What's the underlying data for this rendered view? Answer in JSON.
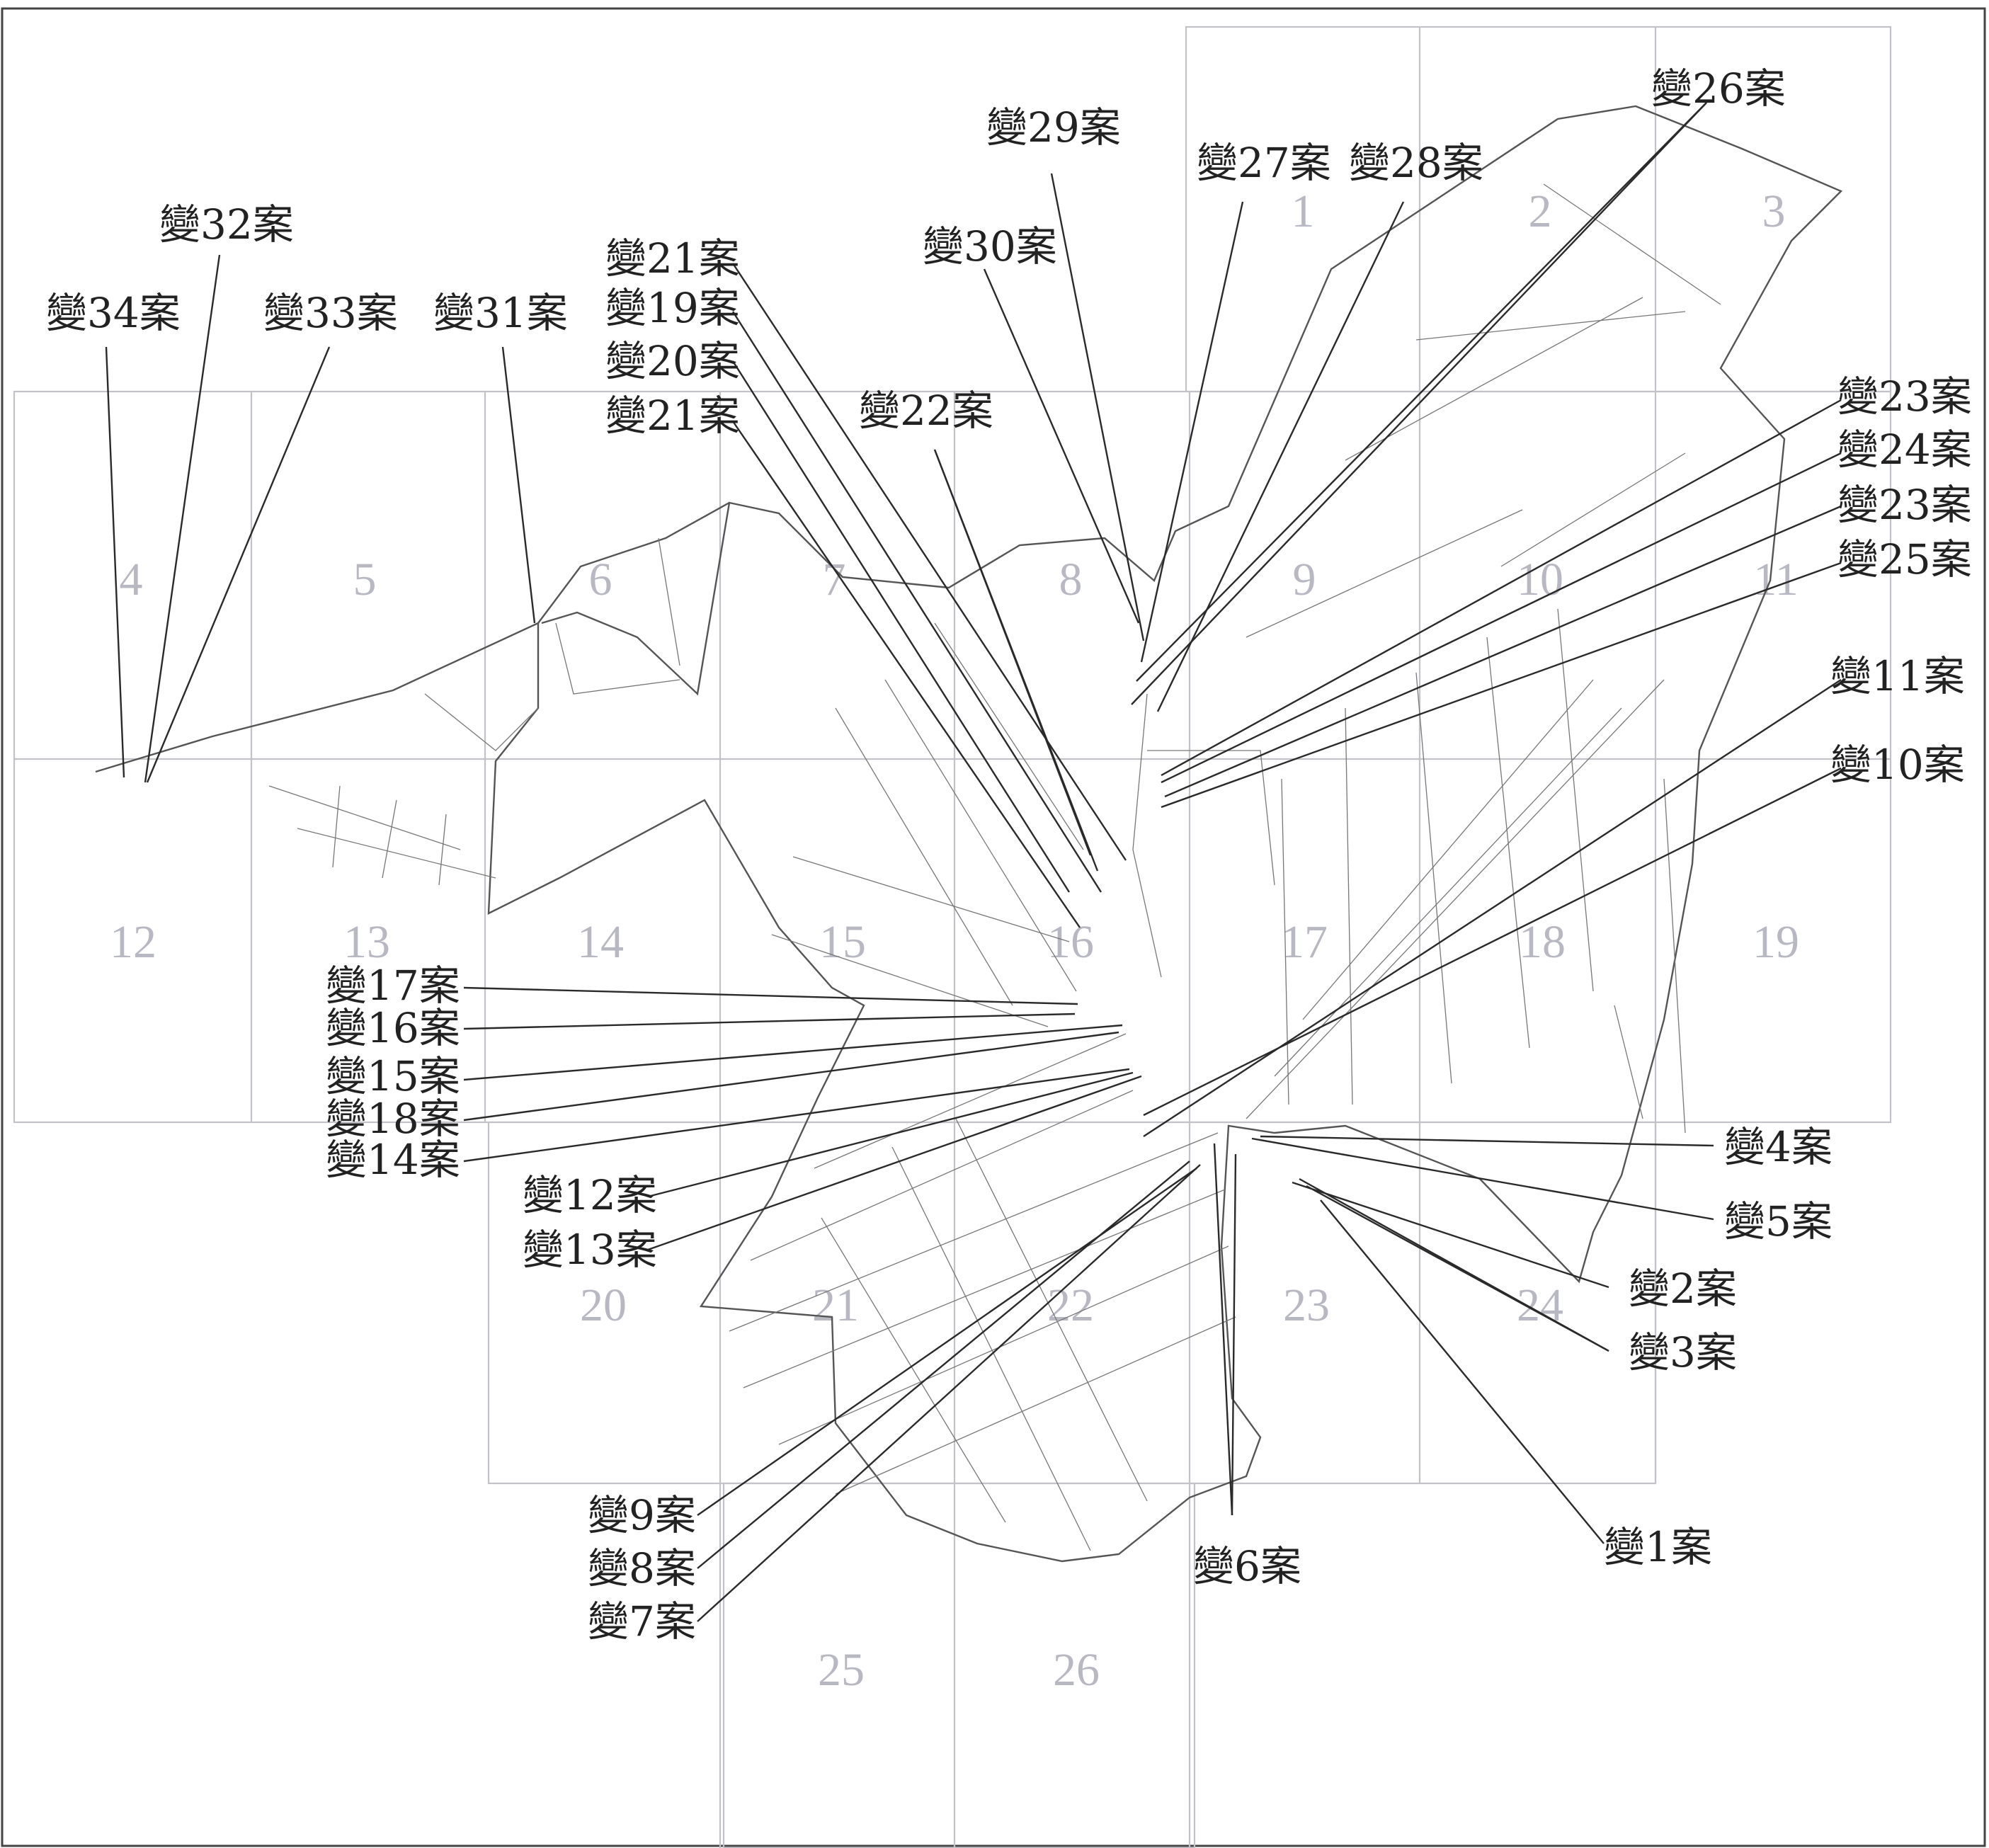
{
  "sheets": [
    "1",
    "2",
    "3",
    "4",
    "5",
    "6",
    "7",
    "8",
    "9",
    "10",
    "11",
    "12",
    "13",
    "14",
    "15",
    "16",
    "17",
    "18",
    "19",
    "20",
    "21",
    "22",
    "23",
    "24",
    "25",
    "26"
  ],
  "cases": [
    "變26案",
    "變29案",
    "變27案",
    "變28案",
    "變32案",
    "變34案",
    "變33案",
    "變31案",
    "變21案",
    "變19案",
    "變20案",
    "變21案",
    "變30案",
    "變22案",
    "變23案",
    "變24案",
    "變23案",
    "變25案",
    "變11案",
    "變10案",
    "變17案",
    "變16案",
    "變15案",
    "變18案",
    "變14案",
    "變12案",
    "變13案",
    "變4案",
    "變5案",
    "變2案",
    "變3案",
    "變1案",
    "變6案",
    "變9案",
    "變8案",
    "變7案"
  ]
}
